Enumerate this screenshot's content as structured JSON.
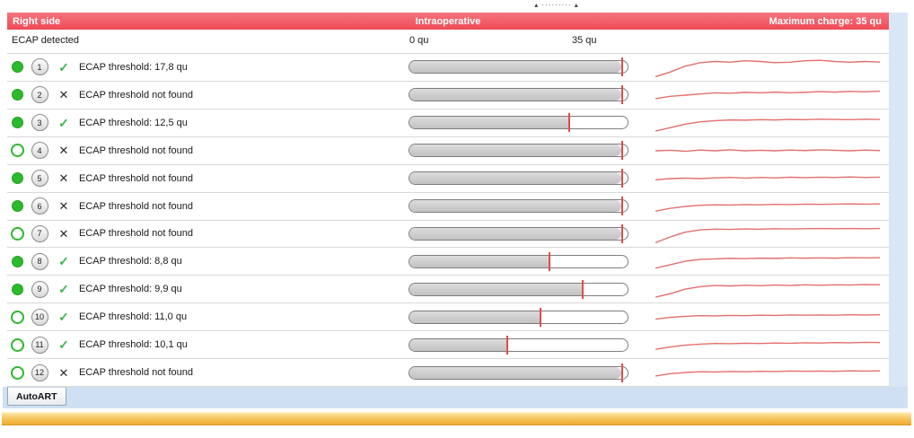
{
  "splitter": {
    "handle": "▴  ·········  ▴"
  },
  "header": {
    "left": "Right side",
    "center": "Intraoperative",
    "right": "Maximum charge: 35 qu",
    "bg": "#ee4b57"
  },
  "axis": {
    "detected_label": "ECAP detected",
    "min_label": "0 qu",
    "max_label": "35 qu",
    "min": 0,
    "max": 35,
    "unit": "qu"
  },
  "icons": {
    "check": "✓",
    "cross": "✕"
  },
  "colors": {
    "detected_green": "#2db92d",
    "marker_red": "#e14b4b",
    "spark_red": "#e2706e",
    "bar_fill_gray": "#c9c9c9"
  },
  "rows": [
    {
      "num": "1",
      "detected": true,
      "found": true,
      "label": "ECAP threshold: 17,8 qu",
      "threshold": "17,8 qu",
      "bar_fill": 0.97,
      "marker_pos": 0.97,
      "spark": [
        0.1,
        0.3,
        0.55,
        0.7,
        0.75,
        0.72,
        0.78,
        0.75,
        0.7,
        0.72,
        0.78,
        0.8,
        0.75,
        0.72,
        0.75,
        0.73
      ]
    },
    {
      "num": "2",
      "detected": true,
      "found": false,
      "label": "ECAP threshold not found",
      "threshold": null,
      "bar_fill": 0.97,
      "marker_pos": 0.97,
      "spark": [
        0.35,
        0.45,
        0.5,
        0.55,
        0.6,
        0.58,
        0.62,
        0.6,
        0.63,
        0.6,
        0.62,
        0.65,
        0.63,
        0.66,
        0.64,
        0.67
      ]
    },
    {
      "num": "3",
      "detected": true,
      "found": true,
      "label": "ECAP threshold: 12,5 qu",
      "threshold": "12,5 qu",
      "bar_fill": 0.73,
      "marker_pos": 0.73,
      "spark": [
        0.15,
        0.3,
        0.45,
        0.55,
        0.6,
        0.63,
        0.62,
        0.64,
        0.63,
        0.65,
        0.64,
        0.66,
        0.65,
        0.64,
        0.66,
        0.65
      ]
    },
    {
      "num": "4",
      "detected": false,
      "found": false,
      "label": "ECAP threshold not found",
      "threshold": null,
      "bar_fill": 0.97,
      "marker_pos": 0.97,
      "spark": [
        0.5,
        0.52,
        0.48,
        0.53,
        0.5,
        0.54,
        0.5,
        0.52,
        0.5,
        0.53,
        0.51,
        0.54,
        0.52,
        0.5,
        0.53,
        0.51
      ]
    },
    {
      "num": "5",
      "detected": true,
      "found": false,
      "label": "ECAP threshold not found",
      "threshold": null,
      "bar_fill": 0.97,
      "marker_pos": 0.97,
      "spark": [
        0.45,
        0.5,
        0.52,
        0.5,
        0.53,
        0.55,
        0.52,
        0.55,
        0.53,
        0.56,
        0.54,
        0.56,
        0.55,
        0.57,
        0.55,
        0.56
      ]
    },
    {
      "num": "6",
      "detected": true,
      "found": false,
      "label": "ECAP threshold not found",
      "threshold": null,
      "bar_fill": 0.97,
      "marker_pos": 0.97,
      "spark": [
        0.3,
        0.42,
        0.5,
        0.55,
        0.57,
        0.56,
        0.58,
        0.57,
        0.59,
        0.58,
        0.6,
        0.59,
        0.6,
        0.61,
        0.6,
        0.61
      ]
    },
    {
      "num": "7",
      "detected": false,
      "found": false,
      "label": "ECAP threshold not found",
      "threshold": null,
      "bar_fill": 0.97,
      "marker_pos": 0.97,
      "spark": [
        0.1,
        0.35,
        0.55,
        0.65,
        0.68,
        0.67,
        0.69,
        0.68,
        0.7,
        0.69,
        0.7,
        0.71,
        0.7,
        0.71,
        0.7,
        0.71
      ]
    },
    {
      "num": "8",
      "detected": true,
      "found": true,
      "label": "ECAP threshold: 8,8 qu",
      "threshold": "8,8 qu",
      "bar_fill": 0.64,
      "marker_pos": 0.64,
      "spark": [
        0.2,
        0.35,
        0.5,
        0.58,
        0.6,
        0.62,
        0.61,
        0.63,
        0.62,
        0.64,
        0.63,
        0.64,
        0.63,
        0.65,
        0.64,
        0.65
      ]
    },
    {
      "num": "9",
      "detected": true,
      "found": true,
      "label": "ECAP threshold: 9,9 qu",
      "threshold": "9,9 qu",
      "bar_fill": 0.79,
      "marker_pos": 0.79,
      "spark": [
        0.15,
        0.3,
        0.5,
        0.6,
        0.65,
        0.63,
        0.66,
        0.64,
        0.67,
        0.65,
        0.68,
        0.66,
        0.68,
        0.67,
        0.69,
        0.68
      ]
    },
    {
      "num": "10",
      "detected": false,
      "found": true,
      "label": "ECAP threshold: 11,0 qu",
      "threshold": "11,0 qu",
      "bar_fill": 0.6,
      "marker_pos": 0.6,
      "spark": [
        0.4,
        0.48,
        0.52,
        0.55,
        0.54,
        0.56,
        0.55,
        0.57,
        0.56,
        0.58,
        0.57,
        0.58,
        0.57,
        0.59,
        0.58,
        0.59
      ]
    },
    {
      "num": "11",
      "detected": false,
      "found": true,
      "label": "ECAP threshold: 10,1 qu",
      "threshold": "10,1 qu",
      "bar_fill": 0.45,
      "marker_pos": 0.45,
      "spark": [
        0.3,
        0.4,
        0.48,
        0.52,
        0.55,
        0.54,
        0.56,
        0.55,
        0.57,
        0.56,
        0.58,
        0.57,
        0.59,
        0.58,
        0.6,
        0.59
      ]
    },
    {
      "num": "12",
      "detected": false,
      "found": false,
      "label": "ECAP threshold not found",
      "threshold": null,
      "bar_fill": 0.97,
      "marker_pos": 0.97,
      "spark": [
        0.35,
        0.45,
        0.5,
        0.53,
        0.52,
        0.54,
        0.53,
        0.55,
        0.54,
        0.56,
        0.55,
        0.56,
        0.55,
        0.57,
        0.56,
        0.57
      ]
    }
  ],
  "footer": {
    "tab": "AutoART"
  }
}
